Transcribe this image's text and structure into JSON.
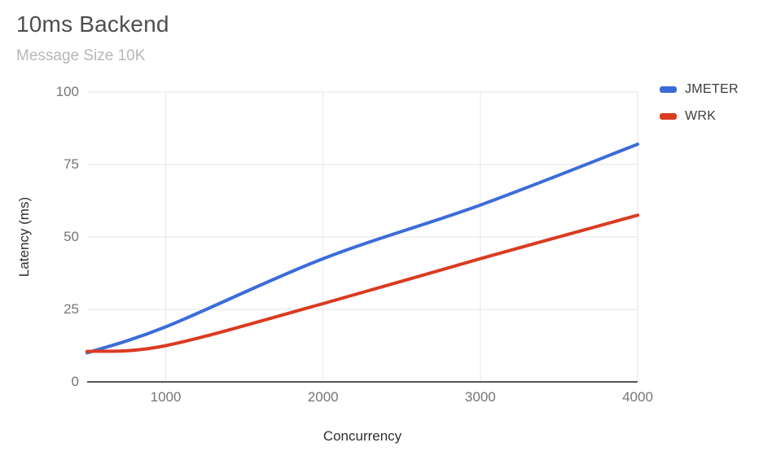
{
  "header": {
    "title": "10ms Backend",
    "subtitle": "Message Size 10K"
  },
  "chart_data": {
    "type": "line",
    "title": "10ms Backend",
    "subtitle": "Message Size 10K",
    "xlabel": "Concurrency",
    "ylabel": "Latency (ms)",
    "x": [
      500,
      1000,
      2000,
      3000,
      4000
    ],
    "series": [
      {
        "name": "JMETER",
        "color": "#3c6cd9",
        "values": [
          10,
          19,
          42.5,
          61,
          82
        ]
      },
      {
        "name": "WRK",
        "color": "#da3b21",
        "values": [
          10.5,
          12.5,
          27,
          42.5,
          57.5
        ]
      }
    ],
    "xlim": [
      500,
      4000
    ],
    "ylim": [
      0,
      100
    ],
    "y_ticks": [
      0,
      25,
      50,
      75,
      100
    ],
    "x_ticks": [
      1000,
      2000,
      3000,
      4000
    ],
    "grid": true,
    "line_smoothing": true,
    "legend_position": "right",
    "colors": {
      "grid": "#e6e6e6",
      "baseline": "#575757",
      "tick_label": "#757575",
      "axis_title": "#2f2f2f",
      "title": "#4e4e4e",
      "subtitle": "#b7b7b7"
    }
  }
}
